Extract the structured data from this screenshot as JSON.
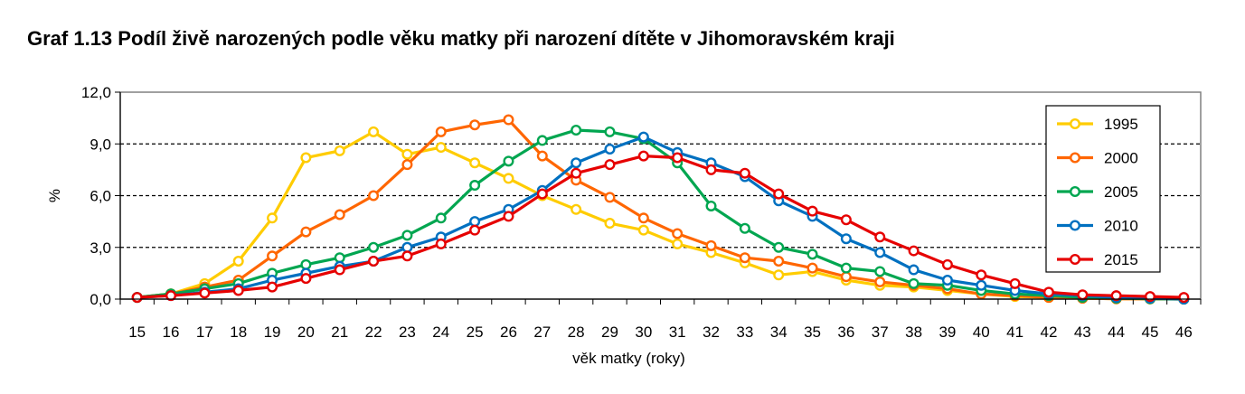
{
  "chart_data": {
    "type": "line",
    "title": "Graf 1.13 Podíl živě narozených podle věku matky při narození dítěte v Jihomoravském kraji",
    "xlabel": "věk matky (roky)",
    "ylabel": "%",
    "ylim": [
      0,
      12
    ],
    "yticks": [
      "0,0",
      "3,0",
      "6,0",
      "9,0",
      "12,0"
    ],
    "ytick_values": [
      0,
      3,
      6,
      9,
      12
    ],
    "categories": [
      "15",
      "16",
      "17",
      "18",
      "19",
      "20",
      "21",
      "22",
      "23",
      "24",
      "25",
      "26",
      "27",
      "28",
      "29",
      "30",
      "31",
      "32",
      "33",
      "34",
      "35",
      "36",
      "37",
      "38",
      "39",
      "40",
      "41",
      "42",
      "43",
      "44",
      "45",
      "46"
    ],
    "grid": "horizontal dashed",
    "legend_position": "right",
    "series": [
      {
        "name": "1995",
        "color": "#FFCC00",
        "values": [
          0.1,
          0.3,
          0.9,
          2.2,
          4.7,
          8.2,
          8.6,
          9.7,
          8.4,
          8.8,
          7.9,
          7.0,
          6.0,
          5.2,
          4.4,
          4.0,
          3.2,
          2.7,
          2.1,
          1.4,
          1.6,
          1.1,
          0.8,
          0.7,
          0.5,
          0.3,
          0.15,
          0.1,
          0.05,
          0.02,
          0.01,
          0.0
        ]
      },
      {
        "name": "2000",
        "color": "#FF6600",
        "values": [
          0.1,
          0.3,
          0.7,
          1.1,
          2.5,
          3.9,
          4.9,
          6.0,
          7.8,
          9.7,
          10.1,
          10.4,
          8.3,
          6.9,
          5.9,
          4.7,
          3.8,
          3.1,
          2.4,
          2.2,
          1.8,
          1.3,
          1.0,
          0.8,
          0.6,
          0.3,
          0.2,
          0.1,
          0.05,
          0.02,
          0.01,
          0.0
        ]
      },
      {
        "name": "2005",
        "color": "#00A650",
        "values": [
          0.1,
          0.3,
          0.6,
          0.9,
          1.5,
          2.0,
          2.4,
          3.0,
          3.7,
          4.7,
          6.6,
          8.0,
          9.2,
          9.8,
          9.7,
          9.3,
          7.9,
          5.4,
          4.1,
          3.0,
          2.6,
          1.8,
          1.6,
          0.9,
          0.8,
          0.5,
          0.3,
          0.2,
          0.1,
          0.05,
          0.02,
          0.0
        ]
      },
      {
        "name": "2010",
        "color": "#0070C0",
        "values": [
          0.1,
          0.2,
          0.4,
          0.6,
          1.1,
          1.5,
          1.9,
          2.2,
          3.0,
          3.6,
          4.5,
          5.2,
          6.3,
          7.9,
          8.7,
          9.4,
          8.5,
          7.9,
          7.1,
          5.7,
          4.8,
          3.5,
          2.7,
          1.7,
          1.1,
          0.8,
          0.5,
          0.3,
          0.2,
          0.1,
          0.05,
          0.0
        ]
      },
      {
        "name": "2015",
        "color": "#E60000",
        "values": [
          0.1,
          0.2,
          0.35,
          0.5,
          0.7,
          1.2,
          1.7,
          2.2,
          2.5,
          3.2,
          4.0,
          4.8,
          6.1,
          7.3,
          7.8,
          8.3,
          8.2,
          7.5,
          7.3,
          6.1,
          5.1,
          4.6,
          3.6,
          2.8,
          2.0,
          1.4,
          0.9,
          0.4,
          0.25,
          0.2,
          0.15,
          0.1
        ]
      }
    ]
  }
}
